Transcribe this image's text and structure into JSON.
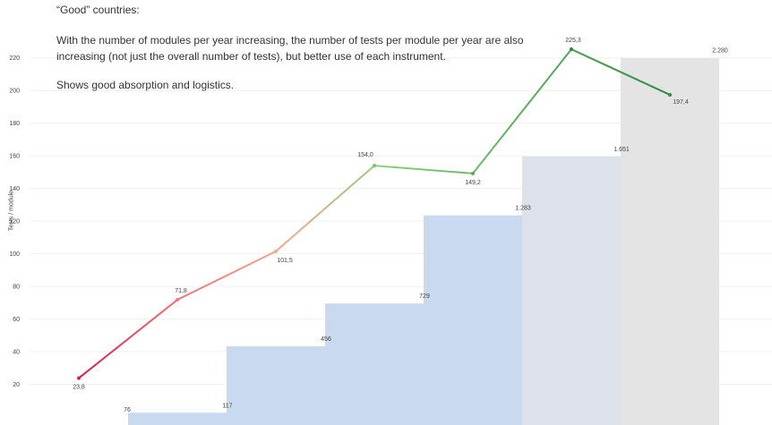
{
  "annotation": {
    "heading": "“Good” countries:",
    "body": "With the number of modules per year increasing, the number of tests per module per year are also increasing (not just the overall number of tests), but better use of each instrument.",
    "note": "Shows good absorption and logistics."
  },
  "colors": {
    "bar_blue": "#c9daf0",
    "bar_gray_blue": "#dde2ea",
    "bar_gray": "#e4e4e4",
    "line_start": "#d6204a",
    "line_mid": "#f4a88c",
    "line_end": "#2e8b45",
    "gridline": "#f1f1f1",
    "text": "#333333"
  },
  "chart_data": {
    "type": "bar+line",
    "ylabel": "Tests / module",
    "ylim": [
      0,
      232
    ],
    "yticks": [
      20,
      40,
      60,
      80,
      100,
      120,
      140,
      160,
      180,
      200,
      220
    ],
    "grid": true,
    "bars": {
      "values": [
        0,
        2.6,
        43.3,
        69.5,
        123.5,
        159.6,
        220
      ],
      "labels": [
        "76",
        "117",
        "456",
        "729",
        "1.283",
        "1.651",
        "2.280"
      ],
      "colors": [
        "#c9daf0",
        "#c9daf0",
        "#c9daf0",
        "#c9daf0",
        "#c9daf0",
        "#dde2ea",
        "#e4e4e4"
      ]
    },
    "line": {
      "values": [
        23.8,
        71.8,
        101.5,
        154.0,
        149.2,
        225.3,
        197.4
      ],
      "labels": [
        "23,8",
        "71,8",
        "101,5",
        "154,0",
        "149,2",
        "225,3",
        "197,4"
      ]
    }
  }
}
